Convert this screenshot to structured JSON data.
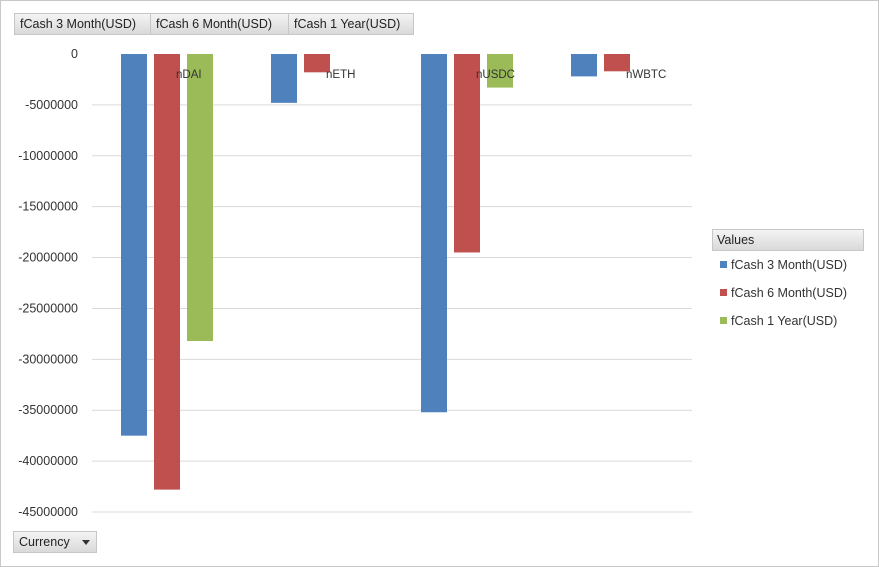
{
  "series_buttons": [
    {
      "label": "fCash 3 Month(USD)"
    },
    {
      "label": "fCash 6 Month(USD)"
    },
    {
      "label": "fCash 1 Year(USD)"
    }
  ],
  "axis_field": {
    "label": "Currency"
  },
  "legend": {
    "title": "Values"
  },
  "chart_data": {
    "type": "bar",
    "categories": [
      "nDAI",
      "nETH",
      "nUSDC",
      "nWBTC"
    ],
    "series": [
      {
        "name": "fCash 3 Month(USD)",
        "color": "#4f81bd",
        "values": [
          -37500000,
          -4800000,
          -35200000,
          -2200000
        ]
      },
      {
        "name": "fCash 6 Month(USD)",
        "color": "#c0504d",
        "values": [
          -42800000,
          -1800000,
          -19500000,
          -1700000
        ]
      },
      {
        "name": "fCash 1 Year(USD)",
        "color": "#9bbb59",
        "values": [
          -28200000,
          null,
          -3300000,
          null
        ]
      }
    ],
    "yticks": [
      "0",
      "-5000000",
      "-10000000",
      "-15000000",
      "-20000000",
      "-25000000",
      "-30000000",
      "-35000000",
      "-40000000",
      "-45000000"
    ],
    "ylim": [
      -45000000,
      0
    ],
    "grid": true,
    "legend_position": "right"
  }
}
